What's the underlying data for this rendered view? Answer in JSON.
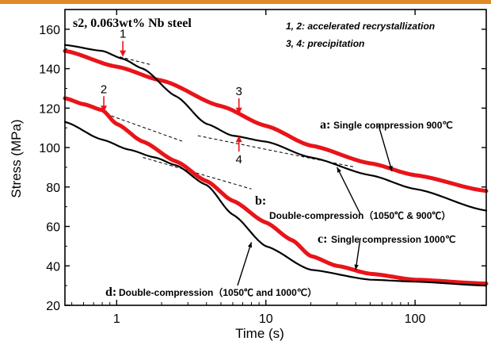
{
  "colors": {
    "red": "#e8141a",
    "black": "#000000",
    "gray": "#6e6e6e",
    "top_strip": "#e08a2a"
  },
  "chart_data": {
    "type": "line",
    "title": "s2, 0.063wt% Nb steel",
    "xlabel": "Time (s)",
    "ylabel": "Stress (MPa)",
    "x_scale": "log",
    "xlim": [
      0.45,
      300
    ],
    "ylim": [
      20,
      170
    ],
    "x_ticks": [
      1,
      10,
      100
    ],
    "x_tick_labels": [
      "1",
      "10",
      "100"
    ],
    "y_ticks": [
      20,
      40,
      60,
      80,
      100,
      120,
      140,
      160
    ],
    "y_tick_labels": [
      "20",
      "40",
      "60",
      "80",
      "100",
      "120",
      "140",
      "160"
    ],
    "legend_notes": [
      "1, 2: accelerated recrystallization",
      "3, 4: precipitation"
    ],
    "series": [
      {
        "letter": "a:",
        "label": "Single compression 900℃",
        "color": "#e8141a",
        "x": [
          0.45,
          1,
          2,
          5,
          10,
          20,
          50,
          100,
          300
        ],
        "y": [
          149,
          141,
          134,
          121,
          111,
          101,
          92,
          86,
          78
        ]
      },
      {
        "letter": "b:",
        "label": "Double-compression（1050℃ & 900℃）",
        "color": "#000000",
        "x": [
          0.45,
          0.8,
          1.1,
          1.5,
          2.5,
          4,
          6,
          10,
          20,
          50,
          100,
          300
        ],
        "y": [
          152,
          149,
          145,
          140,
          126,
          112,
          106,
          103,
          95,
          86,
          79,
          68
        ]
      },
      {
        "letter": "c:",
        "label": "Single compression 1000℃",
        "color": "#e8141a",
        "x": [
          0.45,
          0.6,
          0.8,
          1,
          1.5,
          2.5,
          4,
          6,
          10,
          15,
          20,
          30,
          50,
          100,
          300
        ],
        "y": [
          125,
          122,
          119,
          112,
          103,
          93,
          83,
          73,
          62,
          53,
          45,
          40,
          36,
          33,
          31
        ]
      },
      {
        "letter": "d:",
        "label": "Double-compression（1050℃ and 1000℃）",
        "color": "#000000",
        "x": [
          0.45,
          0.8,
          1.2,
          1.8,
          2.5,
          4,
          6,
          10,
          20,
          50,
          100,
          300
        ],
        "y": [
          113,
          104,
          99,
          95,
          91,
          81,
          66,
          50,
          38,
          33,
          32,
          30
        ]
      }
    ],
    "tangent_lines": [
      {
        "x": [
          1.05,
          1.7
        ],
        "y": [
          146,
          142
        ]
      },
      {
        "x": [
          0.85,
          2.8
        ],
        "y": [
          117,
          103
        ]
      },
      {
        "x": [
          1.5,
          8.0
        ],
        "y": [
          95,
          79
        ]
      },
      {
        "x": [
          3.5,
          40
        ],
        "y": [
          106,
          90
        ]
      }
    ],
    "annotations": [
      {
        "num": "1",
        "arrow_color": "#e8141a",
        "arrow_at": [
          1.1,
          146
        ],
        "text_pos": "above"
      },
      {
        "num": "2",
        "arrow_color": "#e8141a",
        "arrow_at": [
          0.82,
          118
        ],
        "text_pos": "above"
      },
      {
        "num": "3",
        "arrow_color": "#e8141a",
        "arrow_at": [
          6.6,
          117
        ],
        "text_pos": "above"
      },
      {
        "num": "4",
        "arrow_color": "#e8141a",
        "arrow_at": [
          6.6,
          106
        ],
        "text_pos": "below"
      }
    ],
    "grid": false,
    "legend": "none (inline annotations)"
  }
}
